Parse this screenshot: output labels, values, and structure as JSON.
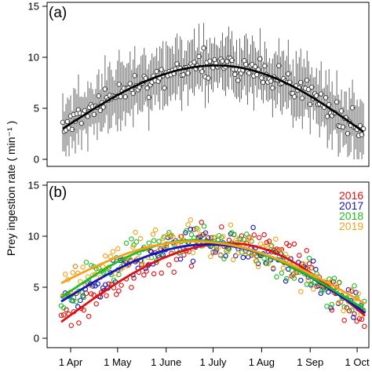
{
  "chart_data": [
    {
      "panel_label": "(a)",
      "type": "scatter",
      "title": "",
      "xlabel": "",
      "ylabel": "Prey ingestion rate ( min⁻¹ )",
      "ylim": [
        0,
        15
      ],
      "yticks": [
        "0",
        "5",
        "10",
        "15"
      ],
      "error_bars": true,
      "fit_line": "smooth",
      "x_range_days_from_1_Apr": [
        -5,
        187
      ],
      "fit_peak": {
        "date": "~1 July",
        "value": 9.2
      },
      "fit_start": 3.0,
      "fit_end": 2.7,
      "color": "#000000"
    },
    {
      "panel_label": "(b)",
      "type": "scatter",
      "title": "",
      "xlabel": "",
      "ylabel": "Prey ingestion rate ( min⁻¹ )",
      "ylim": [
        0,
        15
      ],
      "yticks": [
        "0",
        "5",
        "10",
        "15"
      ],
      "categories": [
        "1 Apr",
        "1 May",
        "1 June",
        "1 July",
        "1 Aug",
        "1 Sep",
        "1 Oct"
      ],
      "legend_position": "right",
      "fit_line": "smooth per series",
      "series": [
        {
          "name": "2016",
          "color": "#dd1111",
          "fit": {
            "start": 1.6,
            "peak": 9.3,
            "peak_day": 102,
            "end": 2.2
          }
        },
        {
          "name": "2017",
          "color": "#1515bb",
          "fit": {
            "start": 3.6,
            "peak": 9.2,
            "peak_day": 88,
            "end": 2.5
          }
        },
        {
          "name": "2018",
          "color": "#22bb22",
          "fit": {
            "start": 4.0,
            "peak": 9.6,
            "peak_day": 78,
            "end": 2.8
          }
        },
        {
          "name": "2019",
          "color": "#f2a21b",
          "fit": {
            "start": 5.4,
            "peak": 9.5,
            "peak_day": 78,
            "end": 3.4
          }
        }
      ]
    }
  ]
}
